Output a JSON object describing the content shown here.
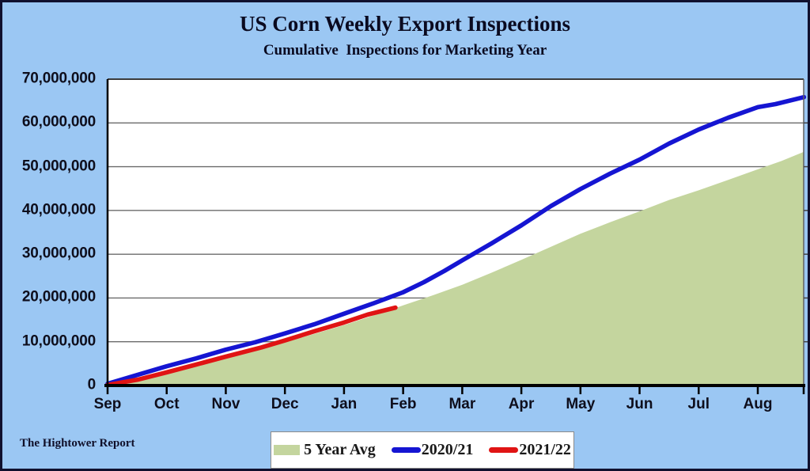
{
  "header": {
    "title": "US Corn Weekly Export Inspections",
    "subtitle": "Cumulative  Inspections for Marketing Year"
  },
  "footer": {
    "brand": "The Hightower Report"
  },
  "legend": {
    "items": [
      {
        "label": "5 Year Avg",
        "swatch": "area"
      },
      {
        "label": "2020/21",
        "swatch": "line"
      },
      {
        "label": "2021/22",
        "swatch": "line"
      }
    ]
  },
  "chart_data": {
    "type": "area",
    "title": "US Corn Weekly Export Inspections",
    "subtitle": "Cumulative Inspections for Marketing Year",
    "grid": "horizontal",
    "legend_position": "bottom-center",
    "x_axis": {
      "tick_labels": [
        "Sep",
        "Oct",
        "Nov",
        "Dec",
        "Jan",
        "Feb",
        "Mar",
        "Apr",
        "May",
        "Jun",
        "Jul",
        "Aug"
      ],
      "note": "marketing year, months Sep through Aug"
    },
    "y_axis": {
      "min": 0,
      "max": 70000000,
      "tick_labels": [
        "0",
        "10,000,000",
        "20,000,000",
        "30,000,000",
        "40,000,000",
        "50,000,000",
        "60,000,000",
        "70,000,000"
      ]
    },
    "point_format": "[months_after_Sep, cumulative_inspections]",
    "series": [
      {
        "name": "5 Year Avg",
        "type": "area",
        "color": "#C4D59E",
        "points": [
          [
            0,
            100000
          ],
          [
            0.5,
            1100000
          ],
          [
            1,
            2600000
          ],
          [
            1.5,
            4300000
          ],
          [
            2,
            6100000
          ],
          [
            2.5,
            8000000
          ],
          [
            3,
            9900000
          ],
          [
            3.5,
            11800000
          ],
          [
            4,
            13800000
          ],
          [
            4.5,
            16000000
          ],
          [
            5,
            18300000
          ],
          [
            5.5,
            20600000
          ],
          [
            6,
            23000000
          ],
          [
            6.5,
            25800000
          ],
          [
            7,
            28700000
          ],
          [
            7.5,
            31700000
          ],
          [
            8,
            34700000
          ],
          [
            8.5,
            37300000
          ],
          [
            9,
            39800000
          ],
          [
            9.5,
            42400000
          ],
          [
            10,
            44600000
          ],
          [
            10.5,
            47000000
          ],
          [
            11,
            49400000
          ],
          [
            11.4,
            51300000
          ],
          [
            11.78,
            53400000
          ]
        ]
      },
      {
        "name": "2020/21",
        "type": "line",
        "color": "#1515D2",
        "points": [
          [
            0,
            400000
          ],
          [
            0.5,
            2400000
          ],
          [
            1,
            4400000
          ],
          [
            1.5,
            6200000
          ],
          [
            2,
            8200000
          ],
          [
            2.5,
            9900000
          ],
          [
            3,
            11900000
          ],
          [
            3.5,
            14000000
          ],
          [
            4,
            16400000
          ],
          [
            4.5,
            18800000
          ],
          [
            5,
            21300000
          ],
          [
            5.35,
            23600000
          ],
          [
            5.7,
            26200000
          ],
          [
            6,
            28600000
          ],
          [
            6.5,
            32500000
          ],
          [
            7,
            36600000
          ],
          [
            7.5,
            41000000
          ],
          [
            8,
            44900000
          ],
          [
            8.5,
            48400000
          ],
          [
            9,
            51600000
          ],
          [
            9.5,
            55300000
          ],
          [
            10,
            58500000
          ],
          [
            10.5,
            61200000
          ],
          [
            11,
            63600000
          ],
          [
            11.3,
            64300000
          ],
          [
            11.78,
            65900000
          ]
        ]
      },
      {
        "name": "2021/22",
        "type": "line",
        "color": "#E01414",
        "points": [
          [
            0,
            150000
          ],
          [
            0.5,
            1300000
          ],
          [
            1,
            3000000
          ],
          [
            1.5,
            4800000
          ],
          [
            2,
            6600000
          ],
          [
            2.6,
            8700000
          ],
          [
            3,
            10300000
          ],
          [
            3.5,
            12400000
          ],
          [
            4,
            14400000
          ],
          [
            4.4,
            16200000
          ],
          [
            4.87,
            17800000
          ]
        ]
      }
    ]
  }
}
